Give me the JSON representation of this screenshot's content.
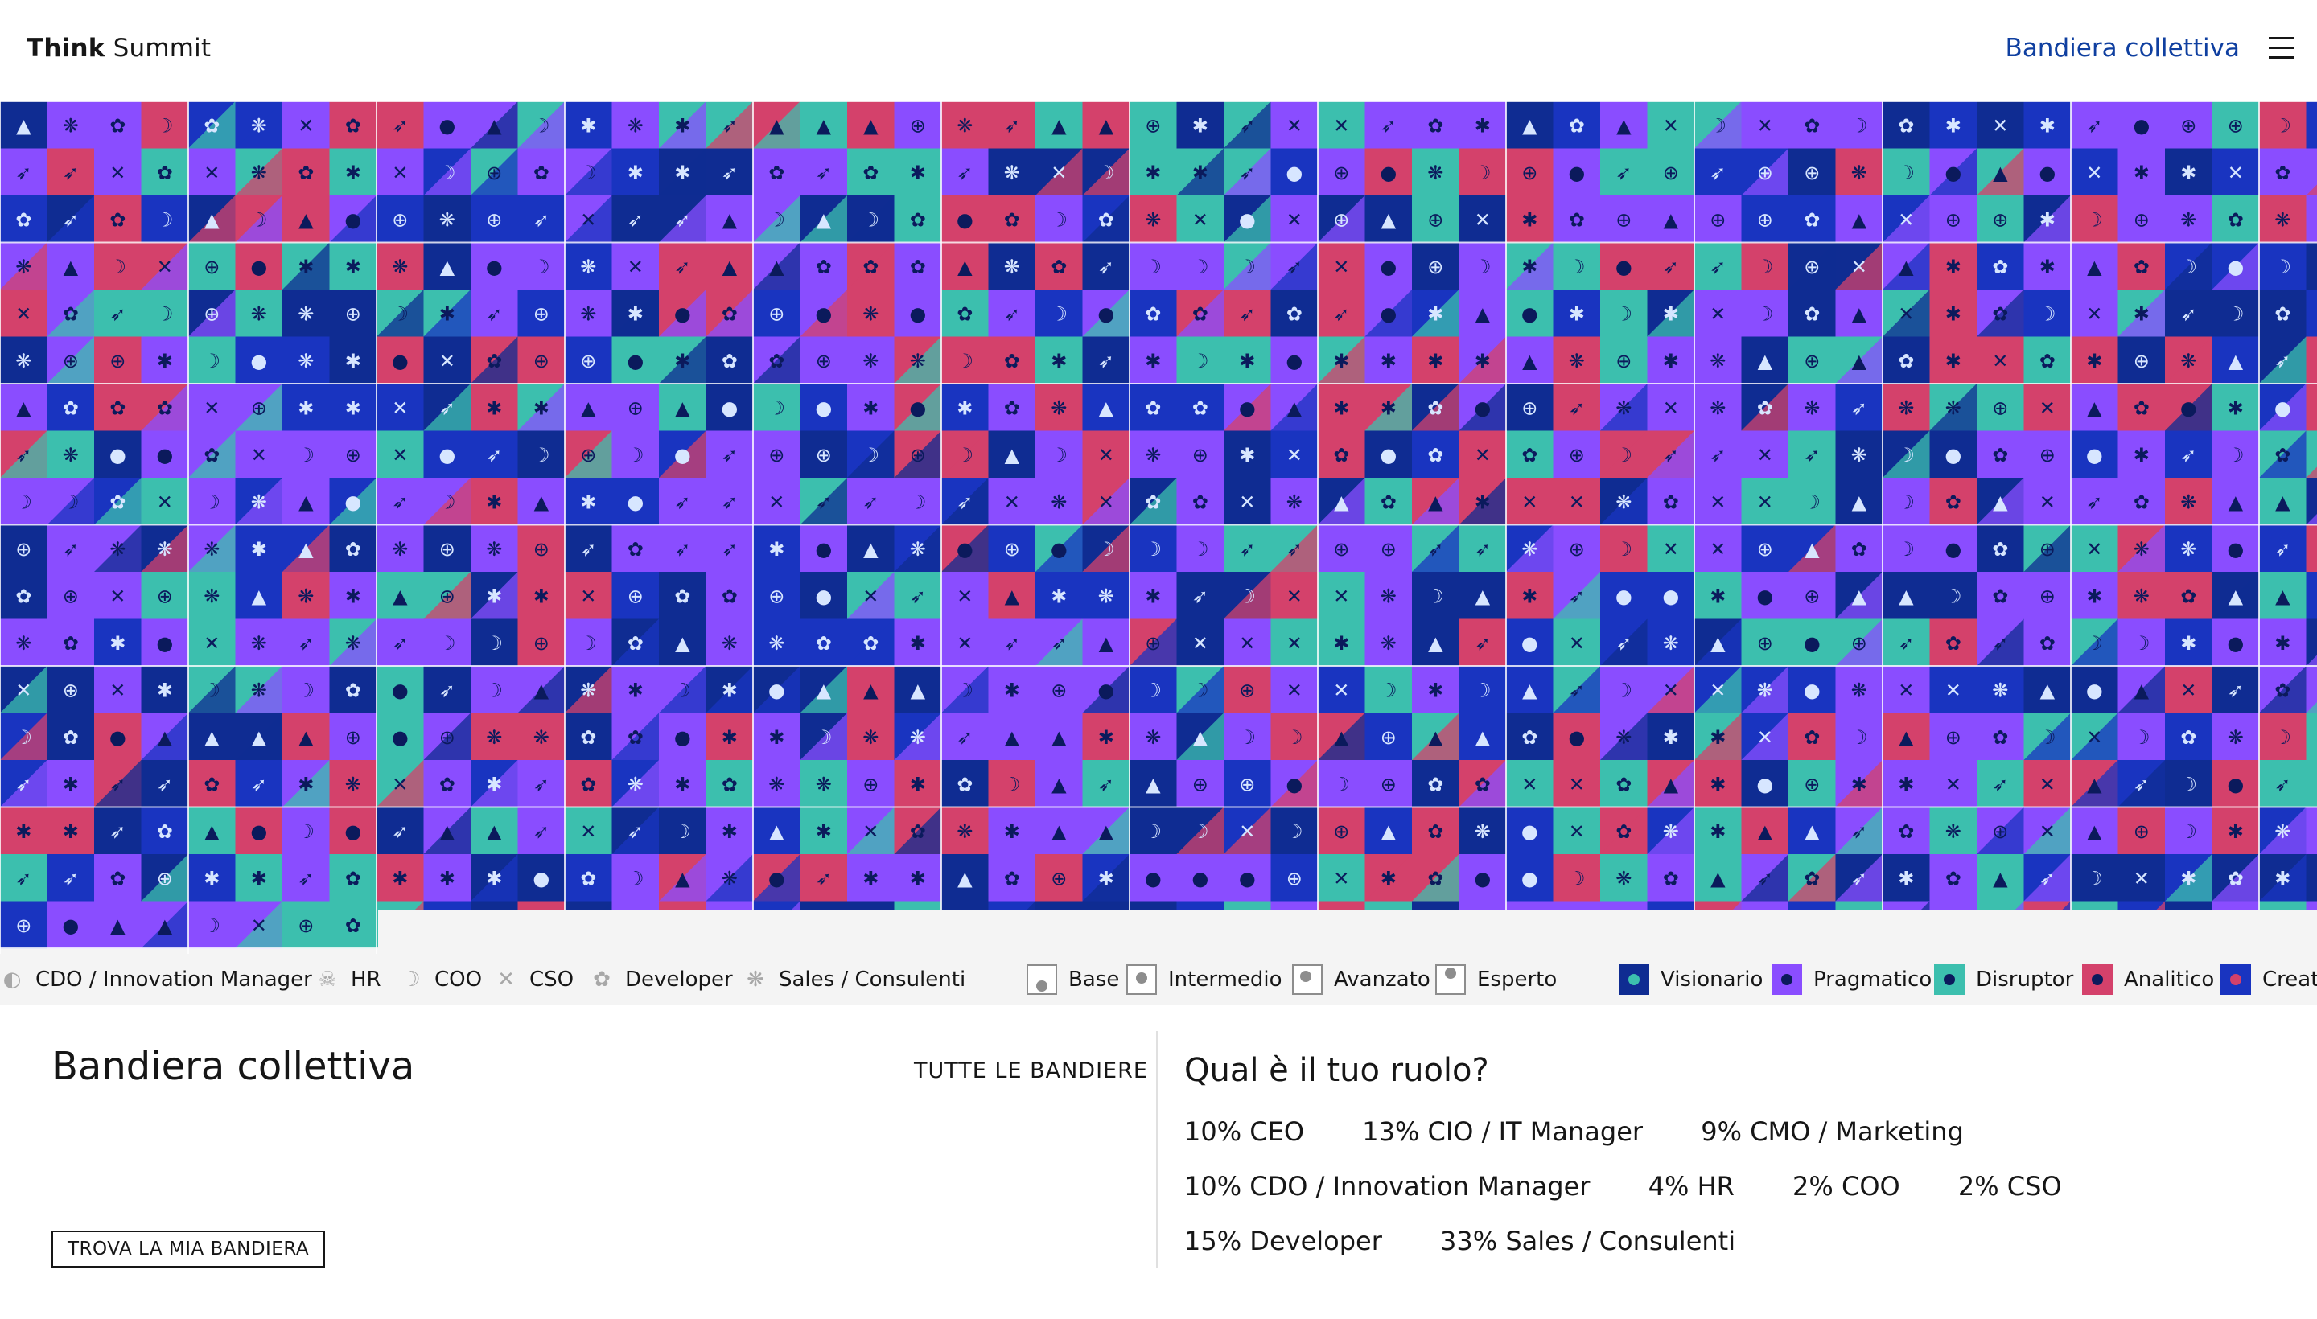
{
  "header": {
    "brand_bold": "Think",
    "brand_rest": "Summit",
    "nav_link": "Bandiera collettiva",
    "menu_icon": "hamburger-menu-icon"
  },
  "mosaic": {
    "palette": {
      "visionario": "#0f2c92",
      "pragmatico": "#8a4dff",
      "disruptor": "#3cbfae",
      "analitico": "#d4416b",
      "creativo": "#1934c0",
      "icon_dark": "#0b1a5c"
    }
  },
  "legend": {
    "roles": [
      {
        "label": "CDO / Innovation Manager",
        "icon": "cdo-icon",
        "glyph": "◐"
      },
      {
        "label": "HR",
        "icon": "hr-icon",
        "glyph": "☠"
      },
      {
        "label": "COO",
        "icon": "coo-icon",
        "glyph": "☽"
      },
      {
        "label": "CSO",
        "icon": "cso-icon",
        "glyph": "✕"
      },
      {
        "label": "Developer",
        "icon": "developer-icon",
        "glyph": "✿"
      },
      {
        "label": "Sales / Consulenti",
        "icon": "sales-icon",
        "glyph": "❋"
      }
    ],
    "levels": [
      {
        "label": "Base",
        "icon": "level-base-icon"
      },
      {
        "label": "Intermedio",
        "icon": "level-intermedio-icon"
      },
      {
        "label": "Avanzato",
        "icon": "level-avanzato-icon"
      },
      {
        "label": "Esperto",
        "icon": "level-esperto-icon"
      }
    ],
    "personas": [
      {
        "label": "Visionario",
        "color": "#0f2c92",
        "dot": "#3cbfae"
      },
      {
        "label": "Pragmatico",
        "color": "#8a4dff",
        "dot": "#0b1a5c"
      },
      {
        "label": "Disruptor",
        "color": "#3cbfae",
        "dot": "#0b1a5c"
      },
      {
        "label": "Analitico",
        "color": "#d4416b",
        "dot": "#0b1a5c"
      },
      {
        "label": "Creati",
        "color": "#1934c0",
        "dot": "#d4416b"
      }
    ]
  },
  "panel": {
    "title": "Bandiera collettiva",
    "all_flags_link": "TUTTE LE BANDIERE",
    "find_button": "TROVA LA MIA BANDIERA"
  },
  "roles_panel": {
    "title": "Qual è il tuo ruolo?",
    "rows": [
      [
        "10% CEO",
        "13% CIO / IT Manager",
        "9% CMO / Marketing"
      ],
      [
        "10% CDO / Innovation Manager",
        "4% HR",
        "2% COO",
        "2% CSO"
      ],
      [
        "15% Developer",
        "33% Sales / Consulenti"
      ]
    ]
  }
}
